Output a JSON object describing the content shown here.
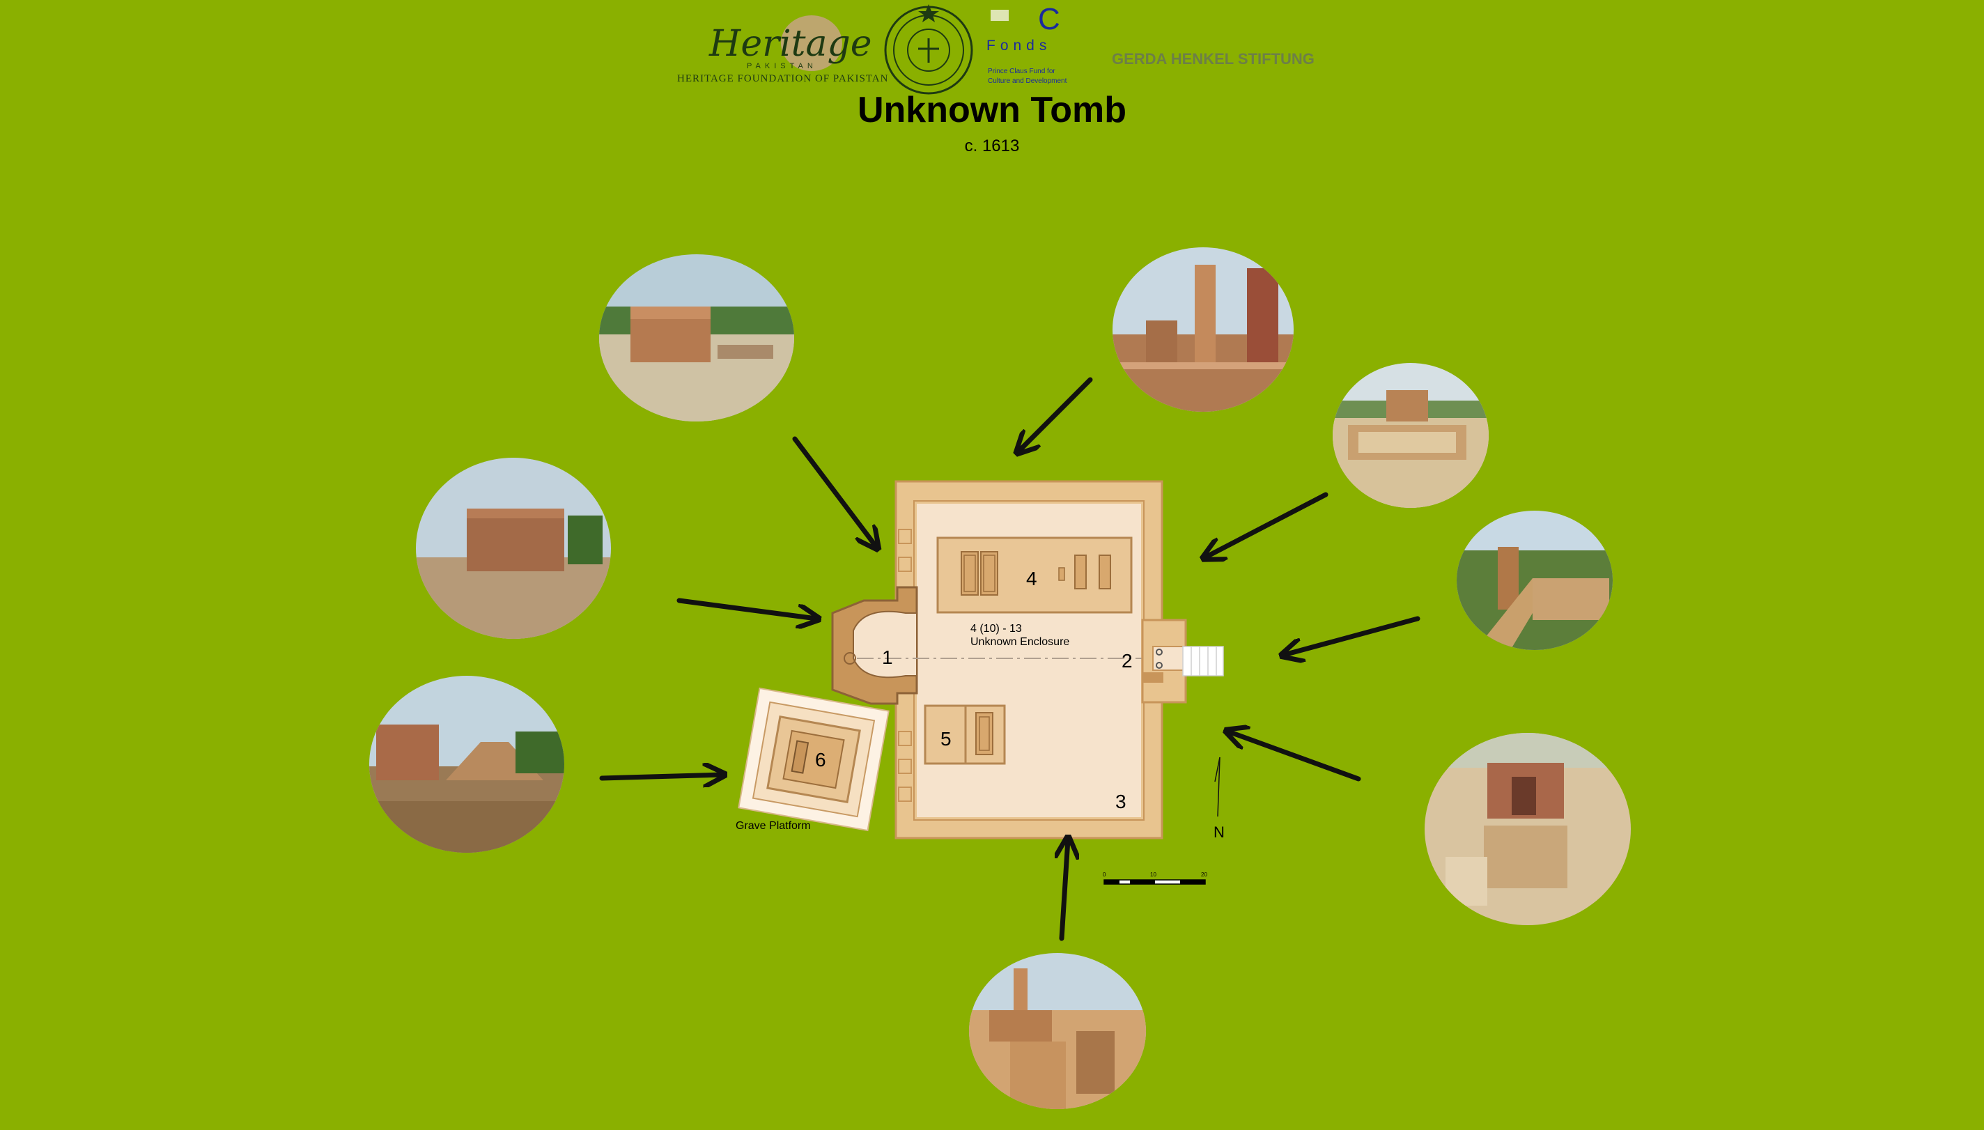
{
  "colors": {
    "background": "#8ab000",
    "plan_wall": "#e8c48f",
    "plan_wall_dark": "#c8955a",
    "plan_floor": "#f6e3cc",
    "plan_platform": "#e9c696",
    "plan_grave": "#d8a86e",
    "arrow": "#111111"
  },
  "logos": {
    "heritage_title": "Heritage",
    "heritage_country": "PAKISTAN",
    "heritage_org": "HERITAGE FOUNDATION OF PAKISTAN",
    "prince_claus_c": "C",
    "prince_claus_fonds": "Fonds",
    "prince_claus_line1": "Prince Claus Fund for",
    "prince_claus_line2": "Culture and Development",
    "gerda_henkel": "GERDA HENKEL STIFTUNG"
  },
  "header": {
    "title": "Unknown Tomb",
    "date": "c. 1613"
  },
  "plan": {
    "labels": {
      "area_1": "1",
      "area_2": "2",
      "area_3": "3",
      "area_4": "4",
      "area_5": "5",
      "area_6": "6"
    },
    "enclosure_id": "4 (10) - 13",
    "enclosure_name": "Unknown Enclosure",
    "platform_name": "Grave Platform",
    "north_label": "N",
    "scale_ticks": [
      "0",
      "10",
      "20"
    ]
  },
  "photos": [
    {
      "name": "photo-northwest-ruin"
    },
    {
      "name": "photo-north-pillars"
    },
    {
      "name": "photo-northeast-enclosure"
    },
    {
      "name": "photo-east-stairs"
    },
    {
      "name": "photo-southeast-mihrab"
    },
    {
      "name": "photo-south-pillar"
    },
    {
      "name": "photo-west-tomb"
    },
    {
      "name": "photo-southwest-platform"
    }
  ]
}
